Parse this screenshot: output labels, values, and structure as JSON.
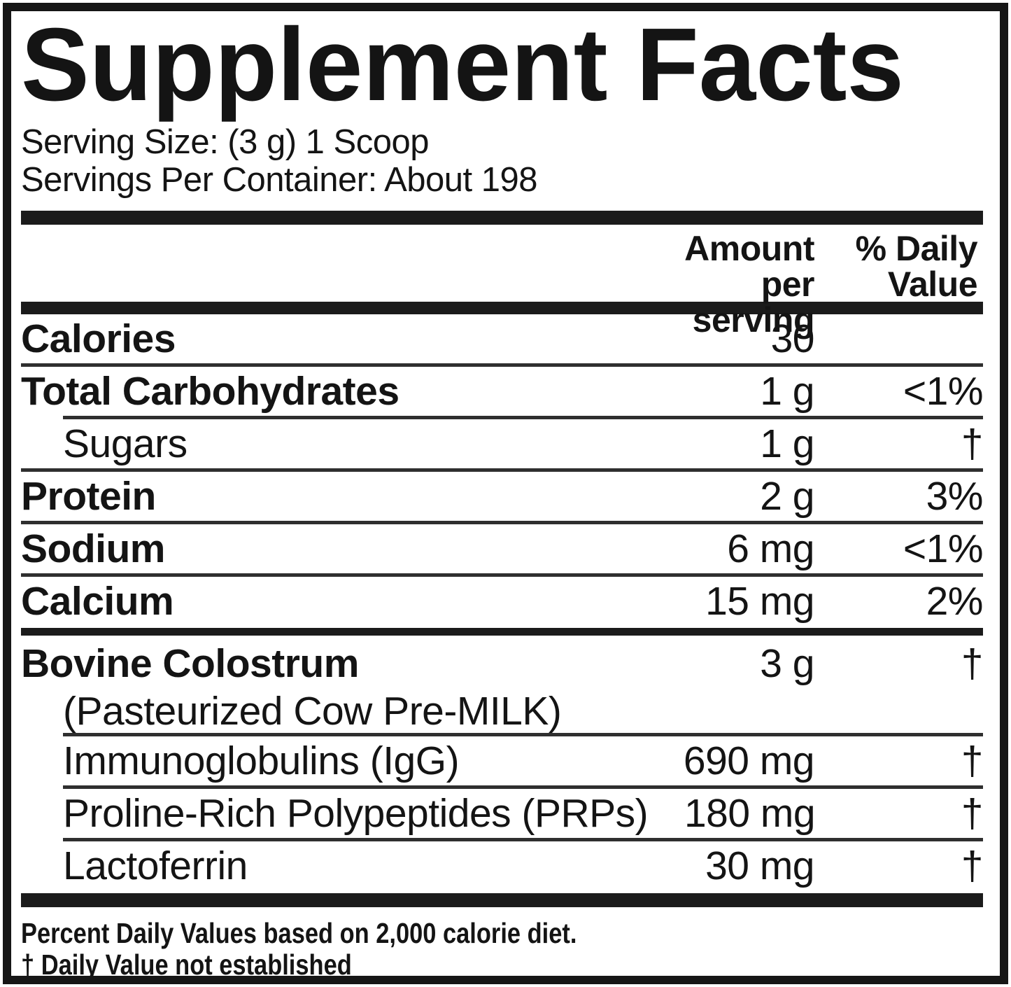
{
  "label": {
    "title": "Supplement Facts",
    "serving_size": "Serving Size: (3 g) 1 Scoop",
    "servings_per_container": "Servings Per Container: About 198",
    "columns": {
      "amount_line1": "Amount per",
      "amount_line2": "serving",
      "dv_line1": "% Daily",
      "dv_line2": "Value"
    },
    "rows": [
      {
        "label": "Calories",
        "amount": "30",
        "dv": "",
        "bold": true,
        "indent": false,
        "sep": "full"
      },
      {
        "label": "Total Carbohydrates",
        "amount": "1 g",
        "dv": "<1%",
        "bold": true,
        "indent": false,
        "sep": "indent"
      },
      {
        "label": "Sugars",
        "amount": "1 g",
        "dv": "†",
        "bold": false,
        "indent": true,
        "sep": "full"
      },
      {
        "label": "Protein",
        "amount": "2 g",
        "dv": "3%",
        "bold": true,
        "indent": false,
        "sep": "full"
      },
      {
        "label": "Sodium",
        "amount": "6 mg",
        "dv": "<1%",
        "bold": true,
        "indent": false,
        "sep": "full"
      },
      {
        "label": "Calcium",
        "amount": "15 mg",
        "dv": "2%",
        "bold": true,
        "indent": false,
        "sep": "bar-medium"
      },
      {
        "label": "Bovine Colostrum",
        "sub": "(Pasteurized Cow Pre-MILK)",
        "amount": "3 g",
        "dv": "†",
        "bold": true,
        "indent": false,
        "sep": "indent"
      },
      {
        "label": "Immunoglobulins (IgG)",
        "amount": "690 mg",
        "dv": "†",
        "bold": false,
        "indent": true,
        "sep": "indent"
      },
      {
        "label": "Proline-Rich Polypeptides (PRPs)",
        "amount": "180 mg",
        "dv": "†",
        "bold": false,
        "indent": true,
        "sep": "indent"
      },
      {
        "label": "Lactoferrin",
        "amount": "30 mg",
        "dv": "†",
        "bold": false,
        "indent": true,
        "sep": "bar-thick"
      }
    ],
    "footnotes": [
      "Percent Daily Values based on 2,000 calorie diet.",
      "† Daily Value not established"
    ]
  }
}
